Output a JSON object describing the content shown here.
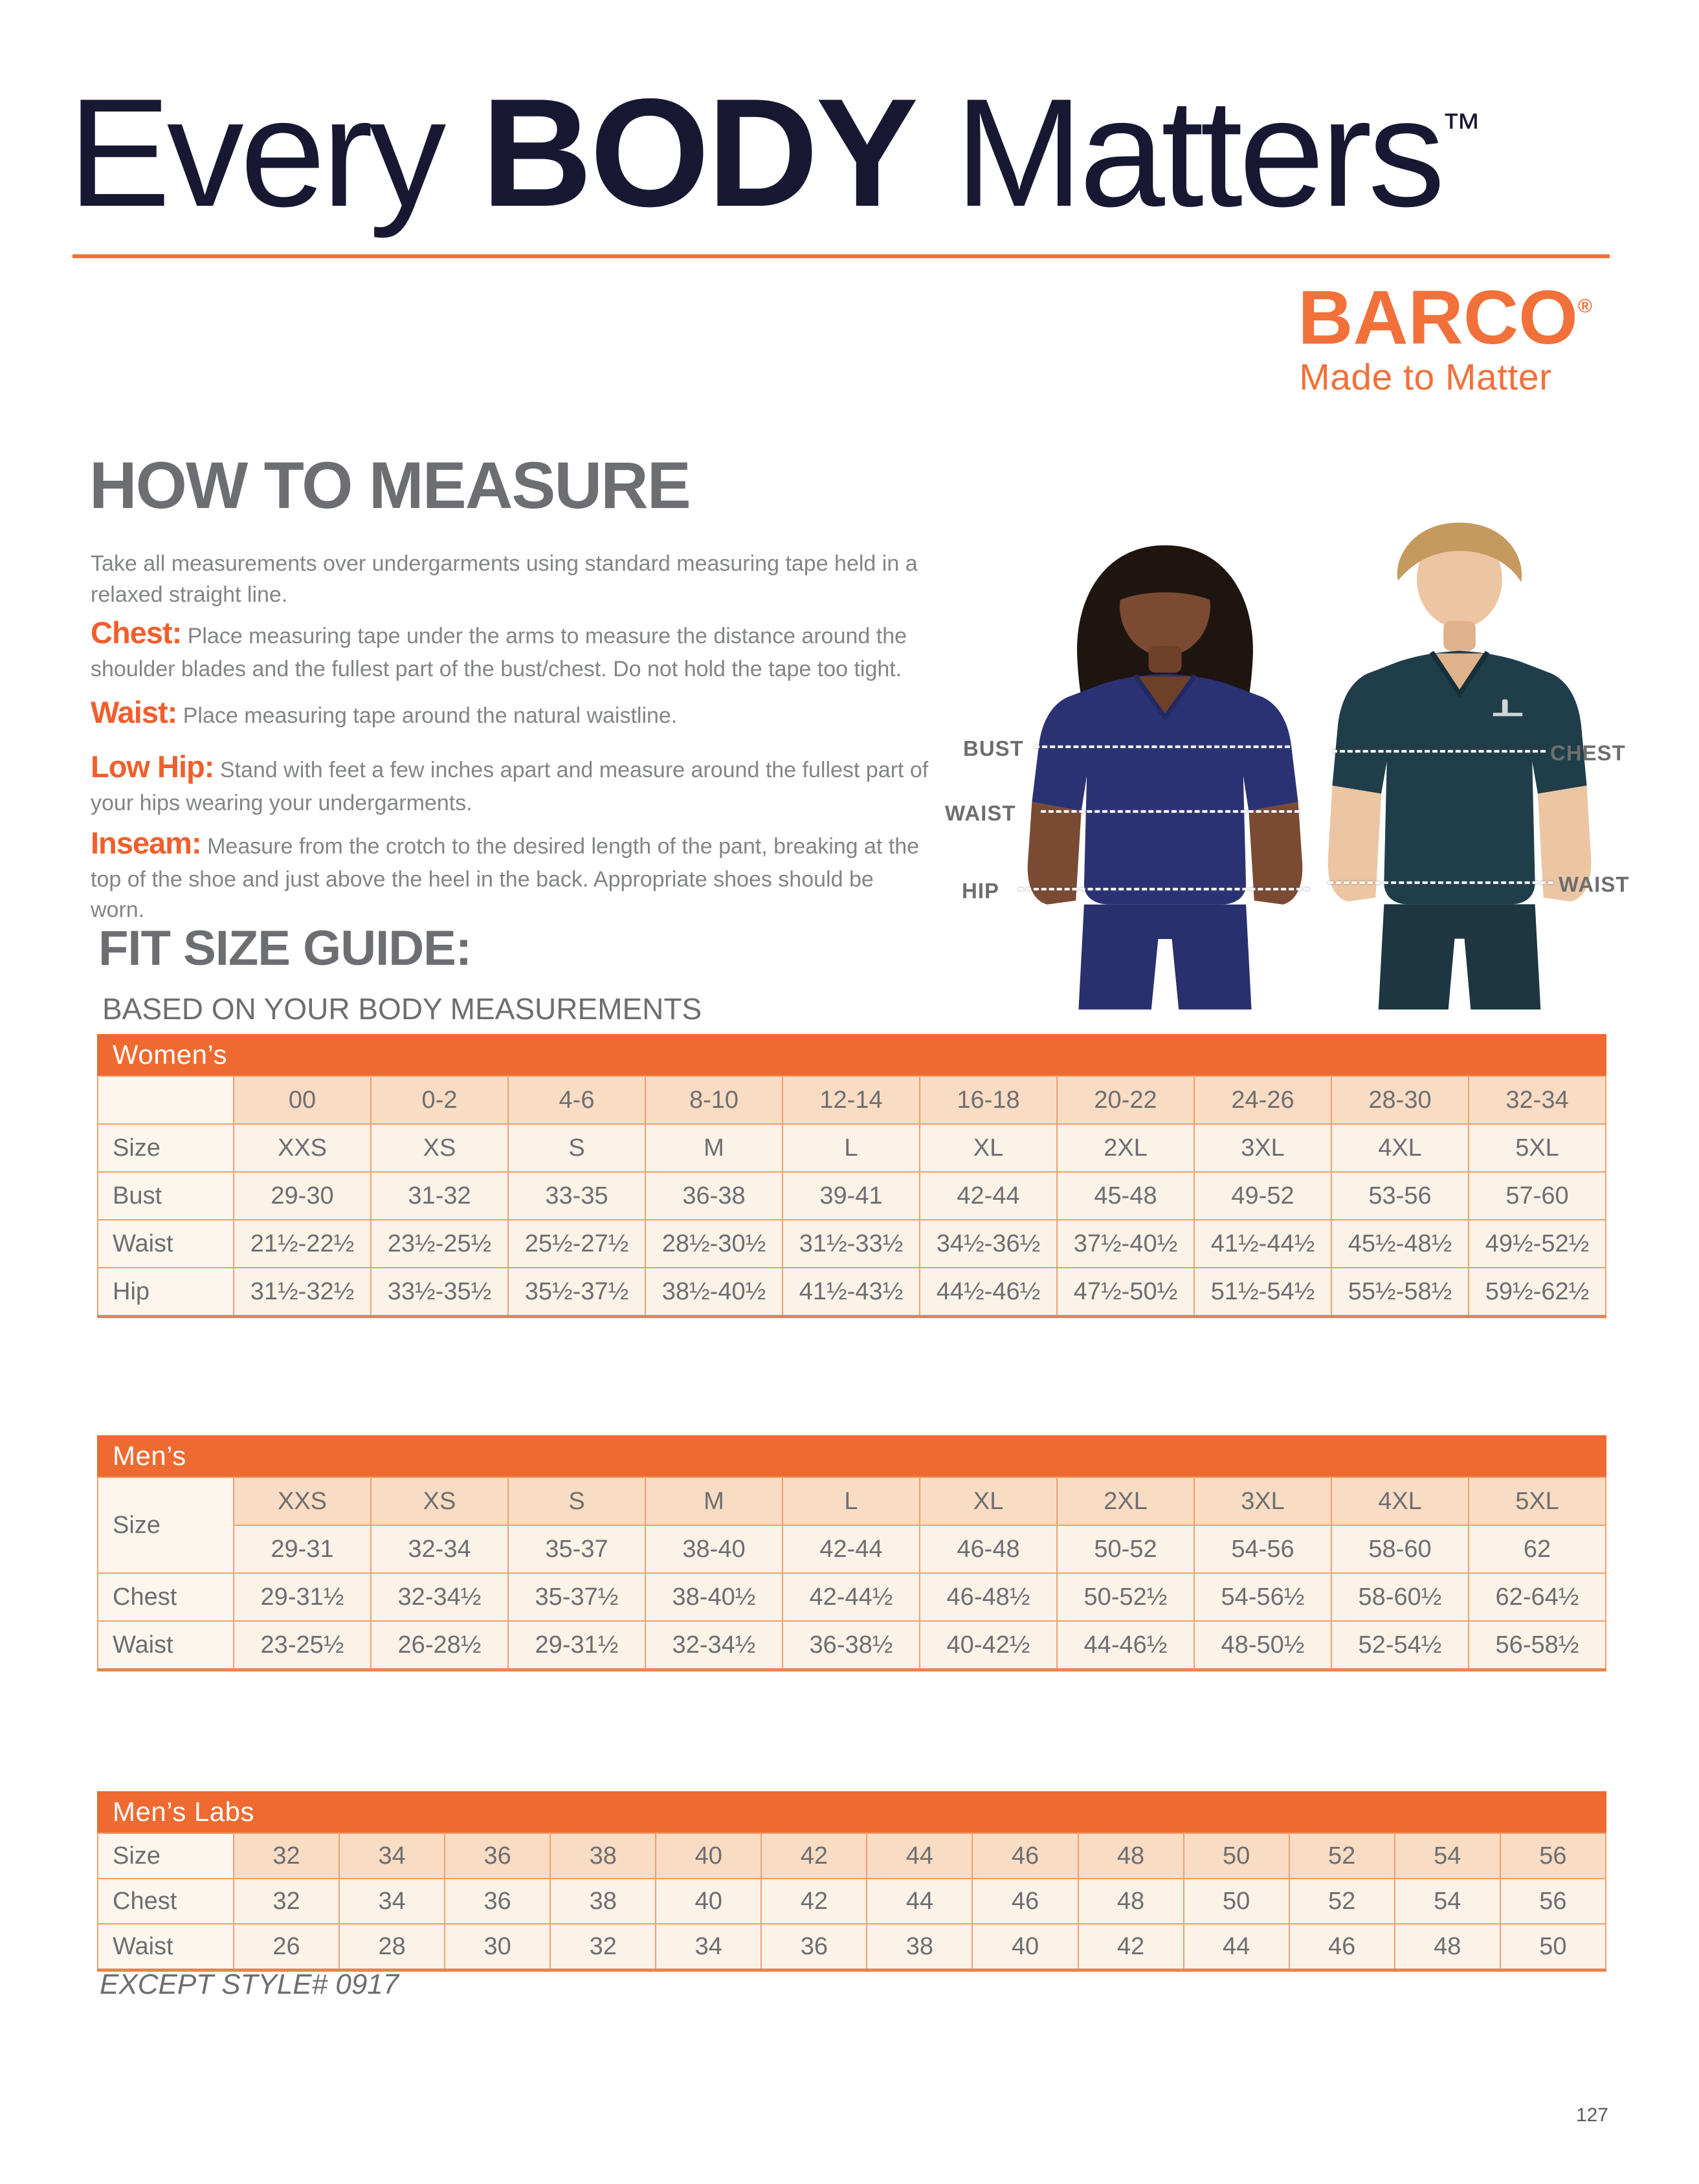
{
  "header": {
    "title_light1": "Every",
    "title_bold": "BODY",
    "title_light2": "Matters",
    "trademark": "™"
  },
  "brand": {
    "name": "BARCO",
    "registered": "®",
    "tagline": "Made to Matter"
  },
  "how_to_measure": {
    "heading": "HOW TO MEASURE",
    "intro": "Take all measurements over undergarments using standard measuring tape held in a relaxed straight line.",
    "items": [
      {
        "label": "Chest:",
        "text": "Place measuring tape under the arms to measure the distance around the shoulder blades and the fullest part of the bust/chest. Do not hold the tape too tight."
      },
      {
        "label": "Waist:",
        "text": "Place measuring tape around the natural waistline."
      },
      {
        "label": "Low Hip:",
        "text": "Stand with feet a few inches apart and measure around the fullest part of your hips wearing your undergarments."
      },
      {
        "label": "Inseam:",
        "text": "Measure from the crotch to the desired length of the pant, breaking at the top of the shoe and just above the heel in the back. Appropriate shoes should be worn."
      }
    ]
  },
  "figure": {
    "labels": {
      "bust": "BUST",
      "waist_w": "WAIST",
      "hip": "HIP",
      "chest": "CHEST",
      "waist_m": "WAIST"
    }
  },
  "fit_guide": {
    "heading": "FIT SIZE GUIDE:",
    "subheading": "BASED ON YOUR BODY MEASUREMENTS"
  },
  "tables": {
    "womens": {
      "title": "Women’s",
      "rows": [
        {
          "label": "",
          "kind": "header",
          "cells": [
            "00",
            "0-2",
            "4-6",
            "8-10",
            "12-14",
            "16-18",
            "20-22",
            "24-26",
            "28-30",
            "32-34"
          ]
        },
        {
          "label": "Size",
          "kind": "data",
          "cells": [
            "XXS",
            "XS",
            "S",
            "M",
            "L",
            "XL",
            "2XL",
            "3XL",
            "4XL",
            "5XL"
          ]
        },
        {
          "label": "Bust",
          "kind": "data",
          "cells": [
            "29-30",
            "31-32",
            "33-35",
            "36-38",
            "39-41",
            "42-44",
            "45-48",
            "49-52",
            "53-56",
            "57-60"
          ]
        },
        {
          "label": "Waist",
          "kind": "data",
          "cells": [
            "21½-22½",
            "23½-25½",
            "25½-27½",
            "28½-30½",
            "31½-33½",
            "34½-36½",
            "37½-40½",
            "41½-44½",
            "45½-48½",
            "49½-52½"
          ]
        },
        {
          "label": "Hip",
          "kind": "data",
          "cells": [
            "31½-32½",
            "33½-35½",
            "35½-37½",
            "38½-40½",
            "41½-43½",
            "44½-46½",
            "47½-50½",
            "51½-54½",
            "55½-58½",
            "59½-62½"
          ]
        }
      ]
    },
    "mens": {
      "title": "Men’s",
      "rows": [
        {
          "label": "Size",
          "label_rowspan": 2,
          "kind": "header",
          "cells": [
            "XXS",
            "XS",
            "S",
            "M",
            "L",
            "XL",
            "2XL",
            "3XL",
            "4XL",
            "5XL"
          ]
        },
        {
          "label": null,
          "kind": "data",
          "cells": [
            "29-31",
            "32-34",
            "35-37",
            "38-40",
            "42-44",
            "46-48",
            "50-52",
            "54-56",
            "58-60",
            "62"
          ]
        },
        {
          "label": "Chest",
          "kind": "data",
          "cells": [
            "29-31½",
            "32-34½",
            "35-37½",
            "38-40½",
            "42-44½",
            "46-48½",
            "50-52½",
            "54-56½",
            "58-60½",
            "62-64½"
          ]
        },
        {
          "label": "Waist",
          "kind": "data",
          "cells": [
            "23-25½",
            "26-28½",
            "29-31½",
            "32-34½",
            "36-38½",
            "40-42½",
            "44-46½",
            "48-50½",
            "52-54½",
            "56-58½"
          ]
        }
      ]
    },
    "mens_labs": {
      "title": "Men’s Labs",
      "rows": [
        {
          "label": "Size",
          "kind": "header",
          "cells": [
            "32",
            "34",
            "36",
            "38",
            "40",
            "42",
            "44",
            "46",
            "48",
            "50",
            "52",
            "54",
            "56"
          ]
        },
        {
          "label": "Chest",
          "kind": "data",
          "cells": [
            "32",
            "34",
            "36",
            "38",
            "40",
            "42",
            "44",
            "46",
            "48",
            "50",
            "52",
            "54",
            "56"
          ]
        },
        {
          "label": "Waist",
          "kind": "data",
          "cells": [
            "26",
            "28",
            "30",
            "32",
            "34",
            "36",
            "38",
            "40",
            "42",
            "44",
            "46",
            "48",
            "50"
          ]
        }
      ]
    }
  },
  "footnote": {
    "text": "EXCEPT STYLE# 0917"
  },
  "page_number": "127",
  "colors": {
    "accent_orange": "#EE6A30",
    "rule_orange": "#F2703A",
    "lead_orange": "#F15E2C",
    "title_navy": "#181833",
    "heading_gray": "#6d6e71",
    "body_gray": "#828487",
    "table_cream": "#FBF2E8",
    "table_peach": "#F9DCC4",
    "table_border": "#F0A06C",
    "woman_scrub_navy": "#2B3274",
    "man_scrub_teal": "#203D4A"
  }
}
